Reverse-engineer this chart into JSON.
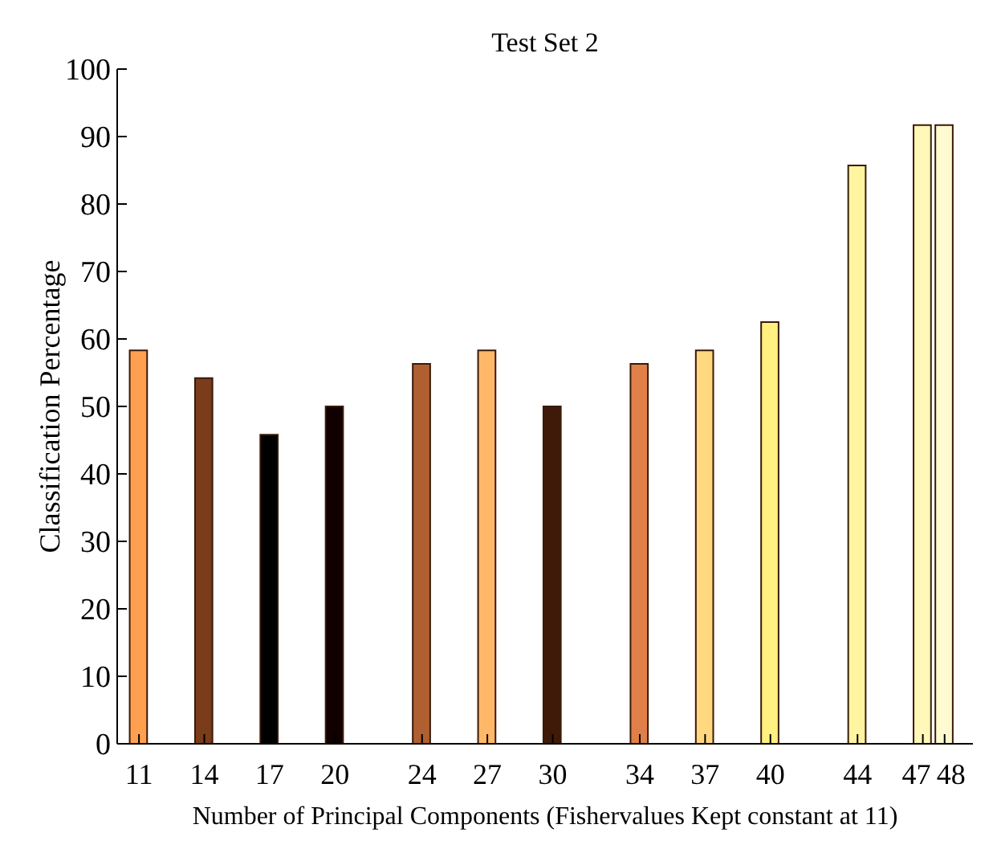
{
  "chart_data": {
    "type": "bar",
    "title": "Test Set 2",
    "xlabel": "Number of Principal Components (Fishervalues Kept constant at 11)",
    "ylabel": "Classification Percentage",
    "x": [
      11,
      14,
      17,
      20,
      24,
      27,
      30,
      34,
      37,
      40,
      44,
      47,
      48
    ],
    "values": [
      58.3,
      54.2,
      45.8,
      50,
      56.3,
      58.3,
      50,
      56.3,
      58.3,
      62.5,
      85.7,
      91.7,
      91.7
    ],
    "colors": [
      "#ffa050",
      "#7a3c1a",
      "#000000",
      "#100000",
      "#b06030",
      "#ffb868",
      "#401a08",
      "#e08048",
      "#ffd880",
      "#fff080",
      "#fff4a0",
      "#fff8b8",
      "#fffad0"
    ],
    "xlim": [
      10,
      49.3
    ],
    "xticks": [
      11,
      14,
      17,
      20,
      24,
      27,
      30,
      34,
      37,
      40,
      44,
      47,
      48
    ],
    "ylim": [
      0,
      100
    ],
    "yticks": [
      0,
      10,
      20,
      30,
      40,
      50,
      60,
      70,
      80,
      90,
      100
    ],
    "grid": false
  }
}
